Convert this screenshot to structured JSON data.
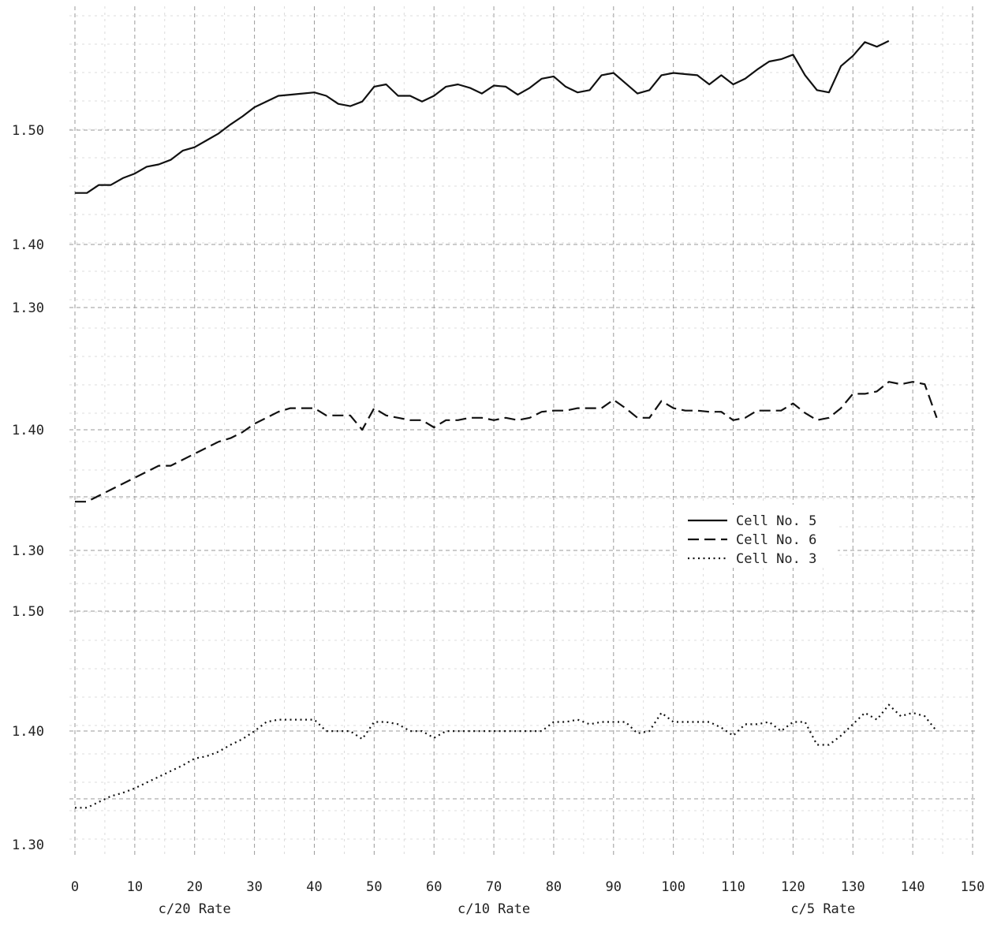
{
  "chart_data": [
    {
      "type": "line",
      "xlim": [
        0,
        150
      ],
      "ylim": [
        1.37,
        1.57
      ],
      "yticks": [
        "1.40",
        "1.50"
      ],
      "x": [
        0,
        2,
        4,
        6,
        8,
        10,
        12,
        14,
        16,
        18,
        20,
        22,
        24,
        26,
        28,
        30,
        32,
        34,
        36,
        40,
        42,
        44,
        46,
        48,
        50,
        52,
        54,
        56,
        58,
        60,
        62,
        64,
        66,
        68,
        70,
        72,
        74,
        76,
        78,
        80,
        82,
        84,
        86,
        88,
        90,
        92,
        94,
        96,
        98,
        100,
        102,
        104,
        106,
        108,
        110,
        112,
        114,
        116,
        118,
        120,
        122,
        124,
        126,
        128,
        130,
        132,
        134,
        136
      ],
      "series": [
        {
          "name": "Cell No. 5",
          "style": "solid",
          "values": [
            1.445,
            1.445,
            1.452,
            1.452,
            1.458,
            1.462,
            1.468,
            1.47,
            1.474,
            1.482,
            1.485,
            1.491,
            1.497,
            1.505,
            1.512,
            1.52,
            1.525,
            1.53,
            1.531,
            1.533,
            1.53,
            1.523,
            1.521,
            1.525,
            1.538,
            1.54,
            1.53,
            1.53,
            1.525,
            1.53,
            1.538,
            1.54,
            1.537,
            1.532,
            1.539,
            1.538,
            1.531,
            1.537,
            1.545,
            1.547,
            1.538,
            1.533,
            1.535,
            1.548,
            1.55,
            1.541,
            1.532,
            1.535,
            1.548,
            1.55,
            1.549,
            1.548,
            1.54,
            1.548,
            1.54,
            1.545,
            1.553,
            1.56,
            1.562,
            1.566,
            1.548,
            1.535,
            1.533,
            1.556,
            1.565,
            1.577,
            1.573,
            1.578
          ]
        }
      ]
    },
    {
      "type": "line",
      "xlim": [
        0,
        150
      ],
      "ylim": [
        1.27,
        1.47
      ],
      "yticks": [
        "1.30",
        "1.40"
      ],
      "x": [
        0,
        2,
        4,
        6,
        8,
        10,
        12,
        14,
        16,
        18,
        20,
        22,
        24,
        26,
        28,
        30,
        32,
        34,
        36,
        40,
        42,
        44,
        46,
        48,
        50,
        52,
        54,
        56,
        58,
        60,
        62,
        64,
        66,
        68,
        70,
        72,
        74,
        76,
        78,
        80,
        82,
        84,
        86,
        88,
        90,
        92,
        94,
        96,
        98,
        100,
        102,
        104,
        106,
        108,
        110,
        112,
        114,
        116,
        118,
        120,
        122,
        124,
        126,
        128,
        130,
        132,
        134,
        136,
        138,
        140,
        142,
        144
      ],
      "series": [
        {
          "name": "Cell No. 6",
          "style": "dashed",
          "values": [
            1.34,
            1.34,
            1.345,
            1.35,
            1.355,
            1.36,
            1.365,
            1.37,
            1.37,
            1.375,
            1.38,
            1.385,
            1.39,
            1.393,
            1.398,
            1.405,
            1.41,
            1.415,
            1.418,
            1.418,
            1.412,
            1.412,
            1.412,
            1.4,
            1.418,
            1.412,
            1.41,
            1.408,
            1.408,
            1.402,
            1.408,
            1.408,
            1.41,
            1.41,
            1.408,
            1.41,
            1.408,
            1.41,
            1.415,
            1.416,
            1.416,
            1.418,
            1.418,
            1.418,
            1.425,
            1.418,
            1.41,
            1.41,
            1.424,
            1.418,
            1.416,
            1.416,
            1.415,
            1.415,
            1.408,
            1.41,
            1.416,
            1.416,
            1.416,
            1.422,
            1.414,
            1.408,
            1.41,
            1.418,
            1.43,
            1.43,
            1.432,
            1.44,
            1.438,
            1.44,
            1.438,
            1.41
          ]
        }
      ]
    },
    {
      "type": "line",
      "xlim": [
        0,
        150
      ],
      "ylim": [
        1.27,
        1.47
      ],
      "yticks": [
        "1.30",
        "1.40",
        "1.50"
      ],
      "x": [
        0,
        2,
        4,
        6,
        8,
        10,
        12,
        14,
        16,
        18,
        20,
        22,
        24,
        26,
        28,
        30,
        32,
        34,
        36,
        40,
        42,
        44,
        46,
        48,
        50,
        52,
        54,
        56,
        58,
        60,
        62,
        64,
        66,
        68,
        70,
        72,
        74,
        76,
        78,
        80,
        82,
        84,
        86,
        88,
        90,
        92,
        94,
        96,
        98,
        100,
        102,
        104,
        106,
        108,
        110,
        112,
        114,
        116,
        118,
        120,
        122,
        124,
        126,
        128,
        130,
        132,
        134,
        136,
        138,
        140,
        142,
        144
      ],
      "series": [
        {
          "name": "Cell No. 3",
          "style": "dotted",
          "values": [
            1.335,
            1.335,
            1.34,
            1.345,
            1.348,
            1.352,
            1.357,
            1.362,
            1.367,
            1.372,
            1.378,
            1.38,
            1.384,
            1.39,
            1.395,
            1.402,
            1.41,
            1.412,
            1.412,
            1.412,
            1.402,
            1.402,
            1.402,
            1.395,
            1.41,
            1.41,
            1.408,
            1.402,
            1.402,
            1.396,
            1.402,
            1.402,
            1.402,
            1.402,
            1.402,
            1.402,
            1.402,
            1.402,
            1.402,
            1.41,
            1.41,
            1.412,
            1.408,
            1.41,
            1.41,
            1.41,
            1.4,
            1.402,
            1.418,
            1.41,
            1.41,
            1.41,
            1.41,
            1.405,
            1.398,
            1.408,
            1.408,
            1.41,
            1.402,
            1.41,
            1.41,
            1.39,
            1.39,
            1.398,
            1.408,
            1.418,
            1.412,
            1.425,
            1.415,
            1.418,
            1.415,
            1.402
          ]
        }
      ]
    }
  ],
  "axis": {
    "x_ticks": [
      "0",
      "10",
      "20",
      "30",
      "40",
      "50",
      "60",
      "70",
      "80",
      "90",
      "100",
      "110",
      "120",
      "130",
      "140",
      "150"
    ],
    "x_tick_values": [
      0,
      10,
      20,
      30,
      40,
      50,
      60,
      70,
      80,
      90,
      100,
      110,
      120,
      130,
      140,
      150
    ],
    "rate_labels": [
      {
        "text": "c/20 Rate",
        "x": 20
      },
      {
        "text": "c/10 Rate",
        "x": 70
      },
      {
        "text": "c/5 Rate",
        "x": 125
      }
    ]
  },
  "legend": {
    "placement": "right-middle",
    "entries": [
      {
        "label": "Cell No. 5",
        "style": "solid"
      },
      {
        "label": "Cell No. 6",
        "style": "dashed"
      },
      {
        "label": "Cell No. 3",
        "style": "dotted"
      }
    ]
  }
}
